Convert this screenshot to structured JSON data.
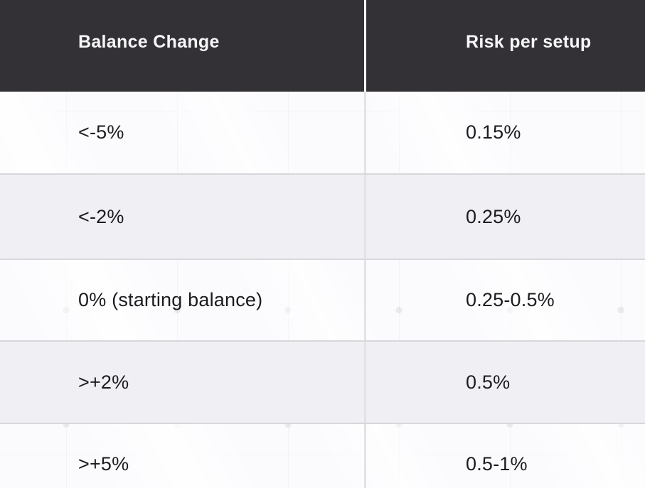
{
  "colors": {
    "header_bg": "#333136",
    "header_text": "#f7f6f8",
    "row_white": "#fbfafd",
    "row_gray": "#f0eff3",
    "row_separator": "#d8d7dc",
    "column_divider_body": "#e3e2e6",
    "column_divider_header": "#fdfdfd",
    "cell_text": "#1c1b1f"
  },
  "chart_data": {
    "type": "table",
    "title": "",
    "columns": [
      "Balance Change",
      "Risk per setup"
    ],
    "rows": [
      [
        "<-5%",
        "0.15%"
      ],
      [
        "<-2%",
        "0.25%"
      ],
      [
        "0% (starting balance)",
        "0.25-0.5%"
      ],
      [
        ">+2%",
        "0.5%"
      ],
      [
        ">+5%",
        "0.5-1%"
      ]
    ]
  },
  "table": {
    "header": [
      {
        "label": "Balance Change"
      },
      {
        "label": "Risk per setup"
      }
    ],
    "rows": [
      {
        "balance_change": "<-5%",
        "risk_per_setup": "0.15%"
      },
      {
        "balance_change": "<-2%",
        "risk_per_setup": "0.25%"
      },
      {
        "balance_change": "0% (starting balance)",
        "risk_per_setup": "0.25-0.5%"
      },
      {
        "balance_change": ">+2%",
        "risk_per_setup": "0.5%"
      },
      {
        "balance_change": ">+5%",
        "risk_per_setup": "0.5-1%"
      }
    ]
  }
}
